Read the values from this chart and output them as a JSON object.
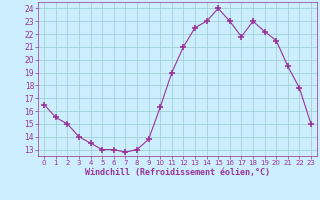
{
  "x": [
    0,
    1,
    2,
    3,
    4,
    5,
    6,
    7,
    8,
    9,
    10,
    11,
    12,
    13,
    14,
    15,
    16,
    17,
    18,
    19,
    20,
    21,
    22,
    23
  ],
  "y": [
    16.5,
    15.5,
    15.0,
    14.0,
    13.5,
    13.0,
    13.0,
    12.8,
    13.0,
    13.8,
    16.3,
    19.0,
    21.0,
    22.5,
    23.0,
    24.0,
    23.0,
    21.8,
    23.0,
    22.2,
    21.5,
    19.5,
    17.8,
    15.0
  ],
  "line_color": "#993399",
  "marker": "+",
  "bg_color": "#cceeff",
  "grid_color": "#99cccc",
  "xlabel": "Windchill (Refroidissement éolien,°C)",
  "ylim": [
    12.5,
    24.5
  ],
  "xlim": [
    -0.5,
    23.5
  ],
  "yticks": [
    13,
    14,
    15,
    16,
    17,
    18,
    19,
    20,
    21,
    22,
    23,
    24
  ],
  "xticks": [
    0,
    1,
    2,
    3,
    4,
    5,
    6,
    7,
    8,
    9,
    10,
    11,
    12,
    13,
    14,
    15,
    16,
    17,
    18,
    19,
    20,
    21,
    22,
    23
  ],
  "tick_color": "#993399",
  "axis_label_color": "#993399"
}
